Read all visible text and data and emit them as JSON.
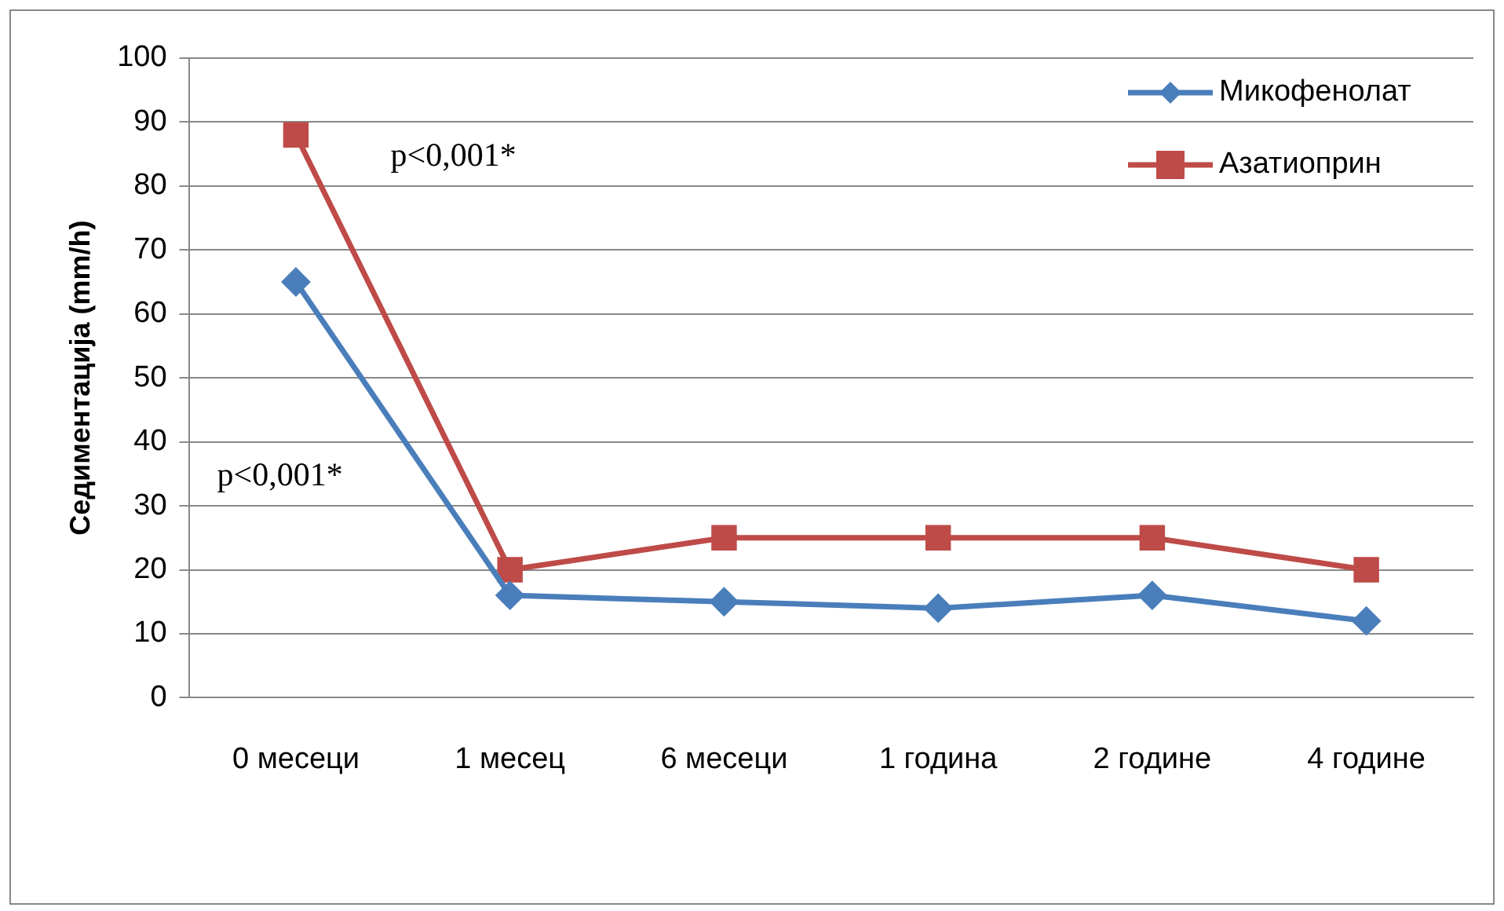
{
  "chart_data": {
    "type": "line",
    "ylabel": "Седиментација (mm/h)",
    "categories": [
      "0 месеци",
      "1 месец",
      "6 месеци",
      "1 година",
      "2 године",
      "4 године"
    ],
    "series": [
      {
        "name": "Микофенолат",
        "color": "#4a7ebb",
        "values": [
          65,
          16,
          15,
          14,
          16,
          12
        ],
        "marker": "diamond"
      },
      {
        "name": "Азатиоприн",
        "color": "#be4b48",
        "values": [
          88,
          20,
          25,
          25,
          25,
          20
        ],
        "marker": "square"
      }
    ],
    "ylim": [
      0,
      100
    ],
    "yticks": [
      0,
      10,
      20,
      30,
      40,
      50,
      60,
      70,
      80,
      90,
      100
    ],
    "grid": "y",
    "legend": "top right",
    "annotations": [
      "p<0,001*",
      "p<0,001*"
    ]
  }
}
